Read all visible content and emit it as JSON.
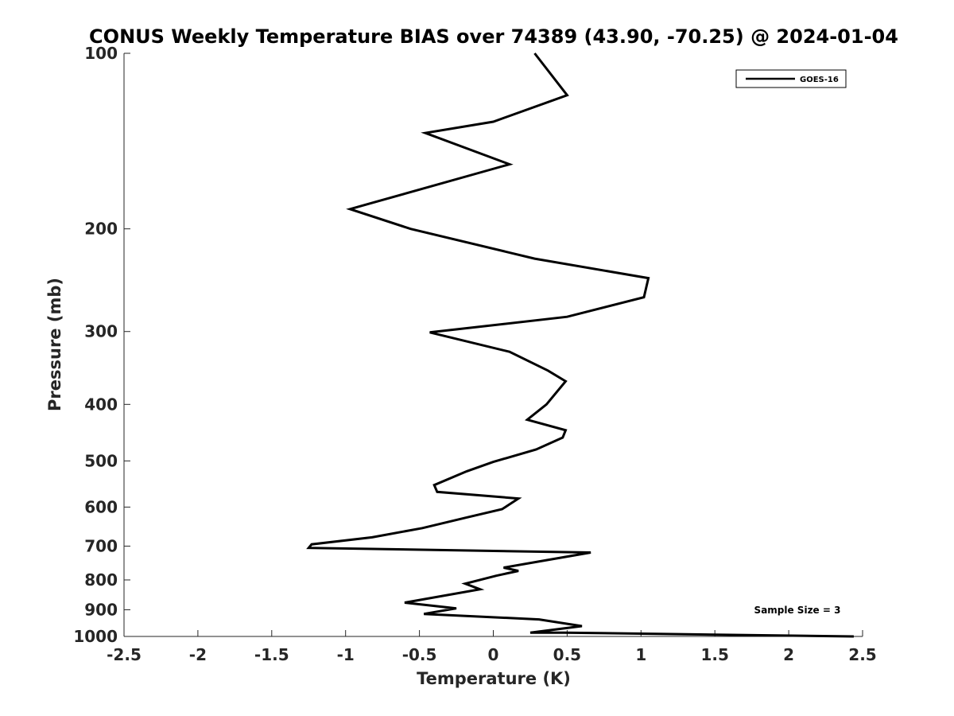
{
  "chart_data": {
    "type": "line",
    "title": "CONUS Weekly Temperature BIAS over 74389 (43.90, -70.25) @ 2024-01-04",
    "xlabel": "Temperature (K)",
    "ylabel": "Pressure (mb)",
    "xlim": [
      -2.5,
      2.5
    ],
    "ylim": [
      100,
      1000
    ],
    "y_scale": "log",
    "y_reversed": true,
    "grid": false,
    "legend_position": "top-right",
    "x_ticks": [
      "-2.5",
      "-2",
      "-1.5",
      "-1",
      "-0.5",
      "0",
      "0.5",
      "1",
      "1.5",
      "2",
      "2.5"
    ],
    "y_ticks": [
      "100",
      "200",
      "300",
      "400",
      "500",
      "600",
      "700",
      "800",
      "900",
      "1000"
    ],
    "annotation": "Sample Size = 3",
    "series": [
      {
        "name": "GOES-16",
        "color": "#000000",
        "points": [
          [
            0.28,
            100
          ],
          [
            0.5,
            118
          ],
          [
            0.0,
            131
          ],
          [
            -0.46,
            137
          ],
          [
            0.11,
            155
          ],
          [
            -0.97,
            185
          ],
          [
            -0.56,
            200
          ],
          [
            0.28,
            225
          ],
          [
            1.05,
            243
          ],
          [
            1.02,
            262
          ],
          [
            0.5,
            283
          ],
          [
            -0.43,
            301
          ],
          [
            0.11,
            325
          ],
          [
            0.37,
            350
          ],
          [
            0.49,
            365
          ],
          [
            0.36,
            400
          ],
          [
            0.23,
            425
          ],
          [
            0.49,
            443
          ],
          [
            0.47,
            456
          ],
          [
            0.29,
            478
          ],
          [
            0.0,
            502
          ],
          [
            -0.18,
            521
          ],
          [
            -0.4,
            550
          ],
          [
            -0.38,
            565
          ],
          [
            0.17,
            580
          ],
          [
            0.06,
            605
          ],
          [
            -0.18,
            625
          ],
          [
            -0.48,
            652
          ],
          [
            -0.82,
            676
          ],
          [
            -1.23,
            695
          ],
          [
            -1.25,
            705
          ],
          [
            0.66,
            718
          ],
          [
            0.36,
            740
          ],
          [
            0.07,
            762
          ],
          [
            0.17,
            772
          ],
          [
            0.02,
            787
          ],
          [
            -0.19,
            812
          ],
          [
            -0.09,
            830
          ],
          [
            -0.6,
            875
          ],
          [
            -0.25,
            895
          ],
          [
            -0.47,
            915
          ],
          [
            0.31,
            935
          ],
          [
            0.6,
            960
          ],
          [
            0.25,
            985
          ],
          [
            0.48,
            985
          ],
          [
            2.44,
            1000
          ]
        ]
      }
    ]
  }
}
